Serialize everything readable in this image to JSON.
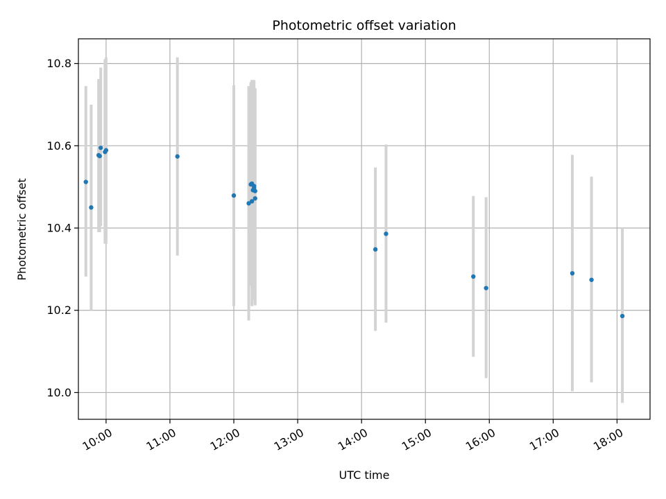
{
  "chart_data": {
    "type": "scatter",
    "title": "Photometric offset variation",
    "xlabel": "UTC time",
    "ylabel": "Photometric offset",
    "xlim": [
      "09:34",
      "18:31"
    ],
    "ylim": [
      9.935,
      10.86
    ],
    "x_ticks": [
      "10:00",
      "11:00",
      "12:00",
      "13:00",
      "14:00",
      "15:00",
      "16:00",
      "17:00",
      "18:00"
    ],
    "y_ticks": [
      10.0,
      10.2,
      10.4,
      10.6,
      10.8
    ],
    "grid": true,
    "colors": {
      "point": "#1f77b4",
      "errorbar": "#d3d3d3",
      "grid": "#b0b0b0"
    },
    "points": [
      {
        "x": "09:41",
        "y": 10.512,
        "low": 10.282,
        "high": 10.745
      },
      {
        "x": "09:46",
        "y": 10.45,
        "low": 10.2,
        "high": 10.7
      },
      {
        "x": "09:53",
        "y": 10.577,
        "low": 10.39,
        "high": 10.762
      },
      {
        "x": "09:54",
        "y": 10.575,
        "low": 10.39,
        "high": 10.762
      },
      {
        "x": "09:55",
        "y": 10.595,
        "low": 10.405,
        "high": 10.79
      },
      {
        "x": "09:59",
        "y": 10.585,
        "low": 10.362,
        "high": 10.81
      },
      {
        "x": "10:00",
        "y": 10.589,
        "low": 10.362,
        "high": 10.815
      },
      {
        "x": "11:07",
        "y": 10.574,
        "low": 10.333,
        "high": 10.815
      },
      {
        "x": "12:00",
        "y": 10.479,
        "low": 10.21,
        "high": 10.747
      },
      {
        "x": "12:14",
        "y": 10.46,
        "low": 10.175,
        "high": 10.745
      },
      {
        "x": "12:16",
        "y": 10.506,
        "low": 10.26,
        "high": 10.755
      },
      {
        "x": "12:17",
        "y": 10.508,
        "low": 10.255,
        "high": 10.76
      },
      {
        "x": "12:17",
        "y": 10.465,
        "low": 10.21,
        "high": 10.745
      },
      {
        "x": "12:18",
        "y": 10.492,
        "low": 10.23,
        "high": 10.757
      },
      {
        "x": "12:19",
        "y": 10.502,
        "low": 10.235,
        "high": 10.76
      },
      {
        "x": "12:19",
        "y": 10.498,
        "low": 10.225,
        "high": 10.74
      },
      {
        "x": "12:20",
        "y": 10.49,
        "low": 10.215,
        "high": 10.74
      },
      {
        "x": "12:20",
        "y": 10.472,
        "low": 10.212,
        "high": 10.735
      },
      {
        "x": "14:13",
        "y": 10.348,
        "low": 10.15,
        "high": 10.547
      },
      {
        "x": "14:23",
        "y": 10.386,
        "low": 10.17,
        "high": 10.603
      },
      {
        "x": "15:45",
        "y": 10.282,
        "low": 10.087,
        "high": 10.478
      },
      {
        "x": "15:57",
        "y": 10.254,
        "low": 10.035,
        "high": 10.475
      },
      {
        "x": "17:18",
        "y": 10.29,
        "low": 10.003,
        "high": 10.578
      },
      {
        "x": "17:36",
        "y": 10.274,
        "low": 10.025,
        "high": 10.525
      },
      {
        "x": "18:05",
        "y": 10.186,
        "low": 9.975,
        "high": 10.4
      }
    ]
  }
}
